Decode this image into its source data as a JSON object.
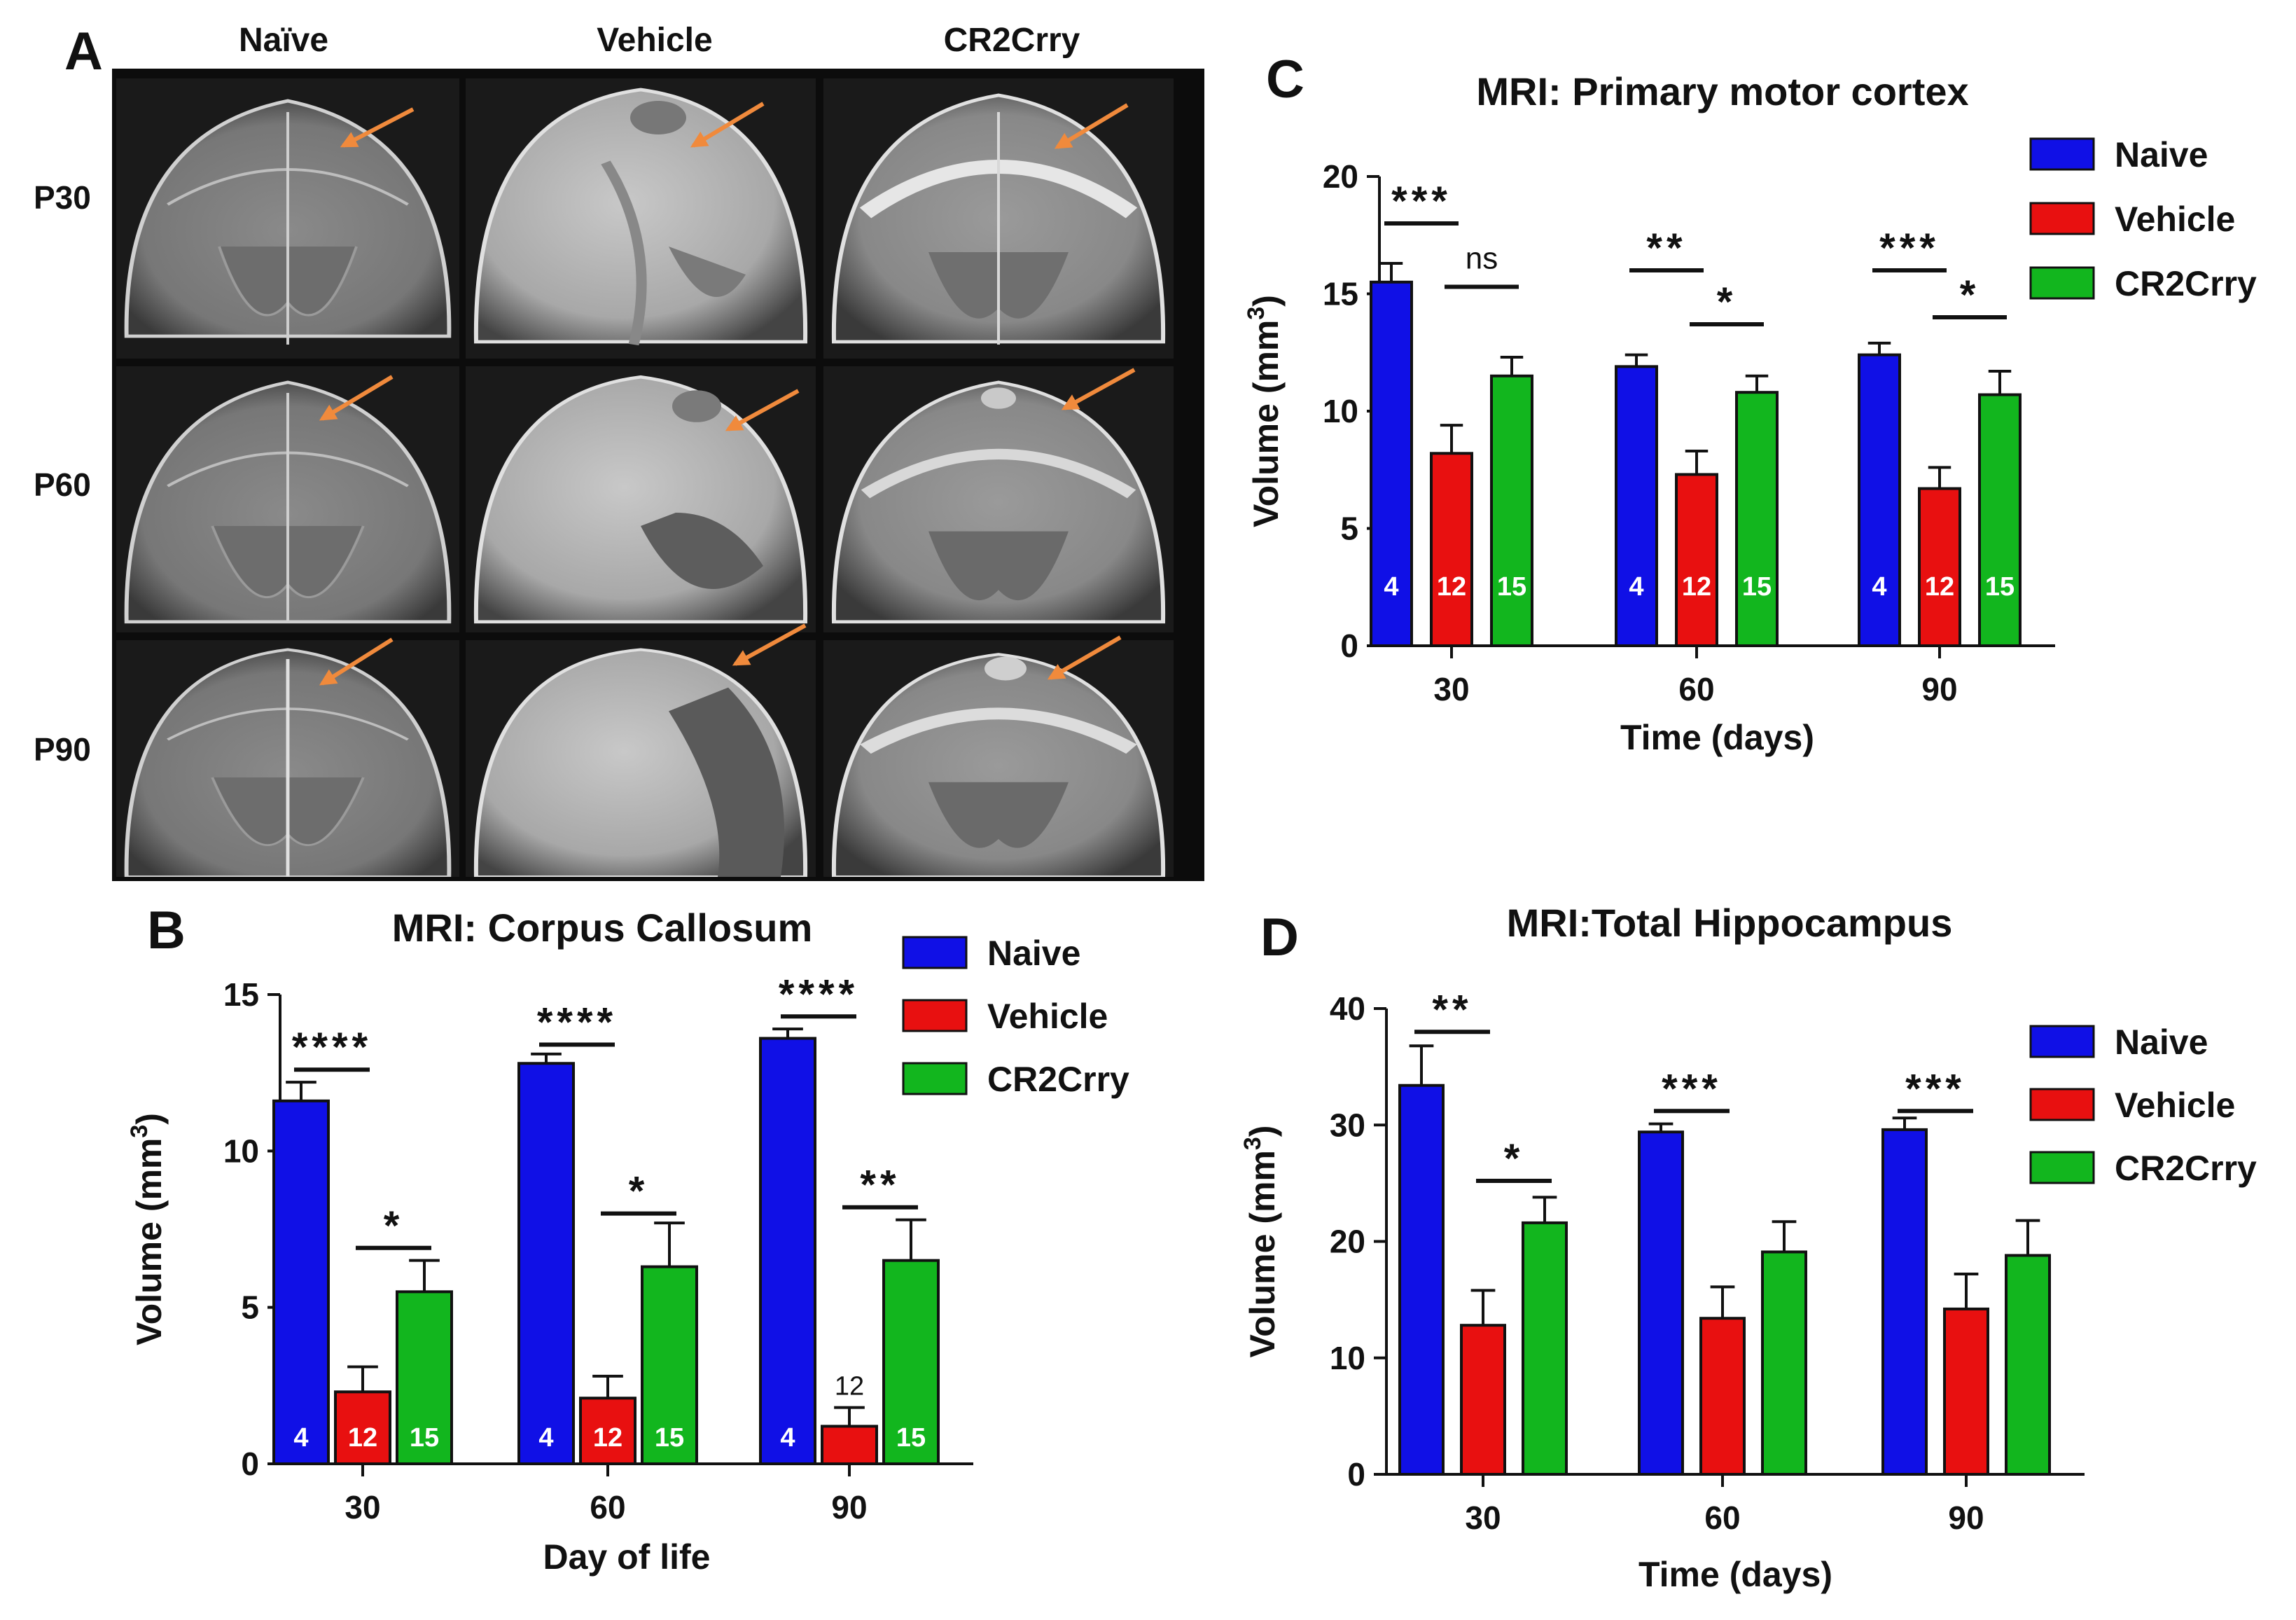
{
  "panels": {
    "a": {
      "letter": "A",
      "columns": [
        "Naïve",
        "Vehicle",
        "CR2Crry"
      ],
      "rows": [
        "P30",
        "P60",
        "P90"
      ]
    }
  },
  "colors": {
    "naive": "#1010e6",
    "vehicle": "#e81010",
    "cr2crry": "#12b61e",
    "arrow": "#f08a3c"
  },
  "chart_data": [
    {
      "id": "B",
      "letter": "B",
      "type": "bar",
      "title": "MRI: Corpus Callosum",
      "xlabel": "Day of life",
      "ylabel": "Volume  (mm",
      "ylabel_sup": "3",
      "ylabel_close": ")",
      "ylim": [
        0,
        15
      ],
      "yticks": [
        "0",
        "5",
        "10",
        "15"
      ],
      "categories": [
        "30",
        "60",
        "90"
      ],
      "legend": "top-right",
      "series": [
        {
          "name": "Naive",
          "color": "#1010e6",
          "values": [
            11.6,
            12.8,
            13.6
          ],
          "errors": [
            0.6,
            0.3,
            0.3
          ],
          "n_labels": [
            "4",
            "4",
            "4"
          ]
        },
        {
          "name": "Vehicle",
          "color": "#e81010",
          "values": [
            2.3,
            2.1,
            1.2
          ],
          "errors": [
            0.8,
            0.7,
            0.6
          ],
          "n_labels": [
            "12",
            "12",
            "12"
          ]
        },
        {
          "name": "CR2Crry",
          "color": "#12b61e",
          "values": [
            5.5,
            6.3,
            6.5
          ],
          "errors": [
            1.0,
            1.4,
            1.3
          ],
          "n_labels": [
            "15",
            "15",
            "15"
          ]
        }
      ],
      "significance": [
        {
          "cat": 0,
          "from": 0,
          "to": 1,
          "label": "****",
          "y": 12.6
        },
        {
          "cat": 0,
          "from": 1,
          "to": 2,
          "label": "*",
          "y": 6.9
        },
        {
          "cat": 1,
          "from": 0,
          "to": 1,
          "label": "****",
          "y": 13.4
        },
        {
          "cat": 1,
          "from": 1,
          "to": 2,
          "label": "*",
          "y": 8.0
        },
        {
          "cat": 2,
          "from": 0,
          "to": 1,
          "label": "****",
          "y": 14.3
        },
        {
          "cat": 2,
          "from": 1,
          "to": 2,
          "label": "**",
          "y": 8.2
        }
      ],
      "outside_n": {
        "cat": 2,
        "series": 1,
        "label": "12"
      }
    },
    {
      "id": "C",
      "letter": "C",
      "type": "bar",
      "title": "MRI: Primary motor cortex",
      "xlabel": "Time (days)",
      "ylabel": "Volume  (mm",
      "ylabel_sup": "3",
      "ylabel_close": ")",
      "ylim": [
        0,
        20
      ],
      "yticks": [
        "0",
        "5",
        "10",
        "15",
        "20"
      ],
      "categories": [
        "30",
        "60",
        "90"
      ],
      "legend": "top-right",
      "series": [
        {
          "name": "Naive",
          "color": "#1010e6",
          "values": [
            15.5,
            11.9,
            12.4
          ],
          "errors": [
            0.8,
            0.5,
            0.5
          ],
          "n_labels": [
            "4",
            "4",
            "4"
          ]
        },
        {
          "name": "Vehicle",
          "color": "#e81010",
          "values": [
            8.2,
            7.3,
            6.7
          ],
          "errors": [
            1.2,
            1.0,
            0.9
          ],
          "n_labels": [
            "12",
            "12",
            "12"
          ]
        },
        {
          "name": "CR2Crry",
          "color": "#12b61e",
          "values": [
            11.5,
            10.8,
            10.7
          ],
          "errors": [
            0.8,
            0.7,
            1.0
          ],
          "n_labels": [
            "15",
            "15",
            "15"
          ]
        }
      ],
      "significance": [
        {
          "cat": 0,
          "from": 0,
          "to": 1,
          "label": "***",
          "y": 18.0
        },
        {
          "cat": 0,
          "from": 1,
          "to": 2,
          "label": "ns",
          "y": 15.3
        },
        {
          "cat": 1,
          "from": 0,
          "to": 1,
          "label": "**",
          "y": 16.0
        },
        {
          "cat": 1,
          "from": 1,
          "to": 2,
          "label": "*",
          "y": 13.7
        },
        {
          "cat": 2,
          "from": 0,
          "to": 1,
          "label": "***",
          "y": 16.0
        },
        {
          "cat": 2,
          "from": 1,
          "to": 2,
          "label": "*",
          "y": 14.0
        }
      ]
    },
    {
      "id": "D",
      "letter": "D",
      "type": "bar",
      "title": "MRI:Total Hippocampus",
      "xlabel": "Time (days)",
      "ylabel": "Volume  (mm",
      "ylabel_sup": "3",
      "ylabel_close": ")",
      "ylim": [
        0,
        40
      ],
      "yticks": [
        "0",
        "10",
        "20",
        "30",
        "40"
      ],
      "categories": [
        "30",
        "60",
        "90"
      ],
      "legend": "top-right",
      "series": [
        {
          "name": "Naive",
          "color": "#1010e6",
          "values": [
            33.4,
            29.4,
            29.6
          ],
          "errors": [
            3.4,
            0.7,
            1.0
          ],
          "n_labels": [
            "",
            "",
            ""
          ]
        },
        {
          "name": "Vehicle",
          "color": "#e81010",
          "values": [
            12.8,
            13.4,
            14.2
          ],
          "errors": [
            3.0,
            2.7,
            3.0
          ],
          "n_labels": [
            "",
            "",
            ""
          ]
        },
        {
          "name": "CR2Crry",
          "color": "#12b61e",
          "values": [
            21.6,
            19.1,
            18.8
          ],
          "errors": [
            2.2,
            2.6,
            3.0
          ],
          "n_labels": [
            "",
            "",
            ""
          ]
        }
      ],
      "significance": [
        {
          "cat": 0,
          "from": 0,
          "to": 1,
          "label": "**",
          "y": 38.0
        },
        {
          "cat": 0,
          "from": 1,
          "to": 2,
          "label": "*",
          "y": 25.2
        },
        {
          "cat": 1,
          "from": 0,
          "to": 1,
          "label": "***",
          "y": 31.2
        },
        {
          "cat": 2,
          "from": 0,
          "to": 1,
          "label": "***",
          "y": 31.2
        }
      ]
    }
  ]
}
